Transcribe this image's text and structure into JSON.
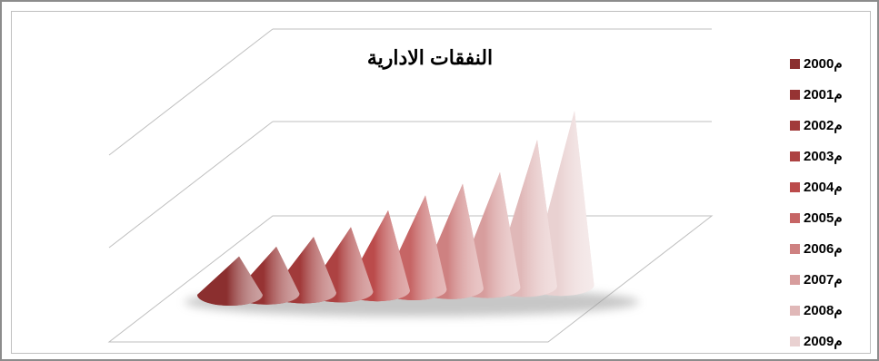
{
  "chart_data": {
    "type": "3d-cone",
    "title": "النفقات الادارية",
    "legend_position": "right",
    "series": [
      {
        "name": "م2000",
        "value": 1.1,
        "color": "#8b2f2f"
      },
      {
        "name": "م2001",
        "value": 1.35,
        "color": "#963333"
      },
      {
        "name": "م2002",
        "value": 1.6,
        "color": "#a13a3a"
      },
      {
        "name": "م2003",
        "value": 1.85,
        "color": "#ad4242"
      },
      {
        "name": "م2004",
        "value": 2.3,
        "color": "#bb4b4b"
      },
      {
        "name": "م2005",
        "value": 2.7,
        "color": "#c66565"
      },
      {
        "name": "م2006",
        "value": 3.0,
        "color": "#ce8181"
      },
      {
        "name": "م2007",
        "value": 3.3,
        "color": "#d79d9d"
      },
      {
        "name": "م2008",
        "value": 4.2,
        "color": "#e0b8b8"
      },
      {
        "name": "م2009",
        "value": 5.0,
        "color": "#e9d1d1"
      }
    ],
    "grid": true
  }
}
